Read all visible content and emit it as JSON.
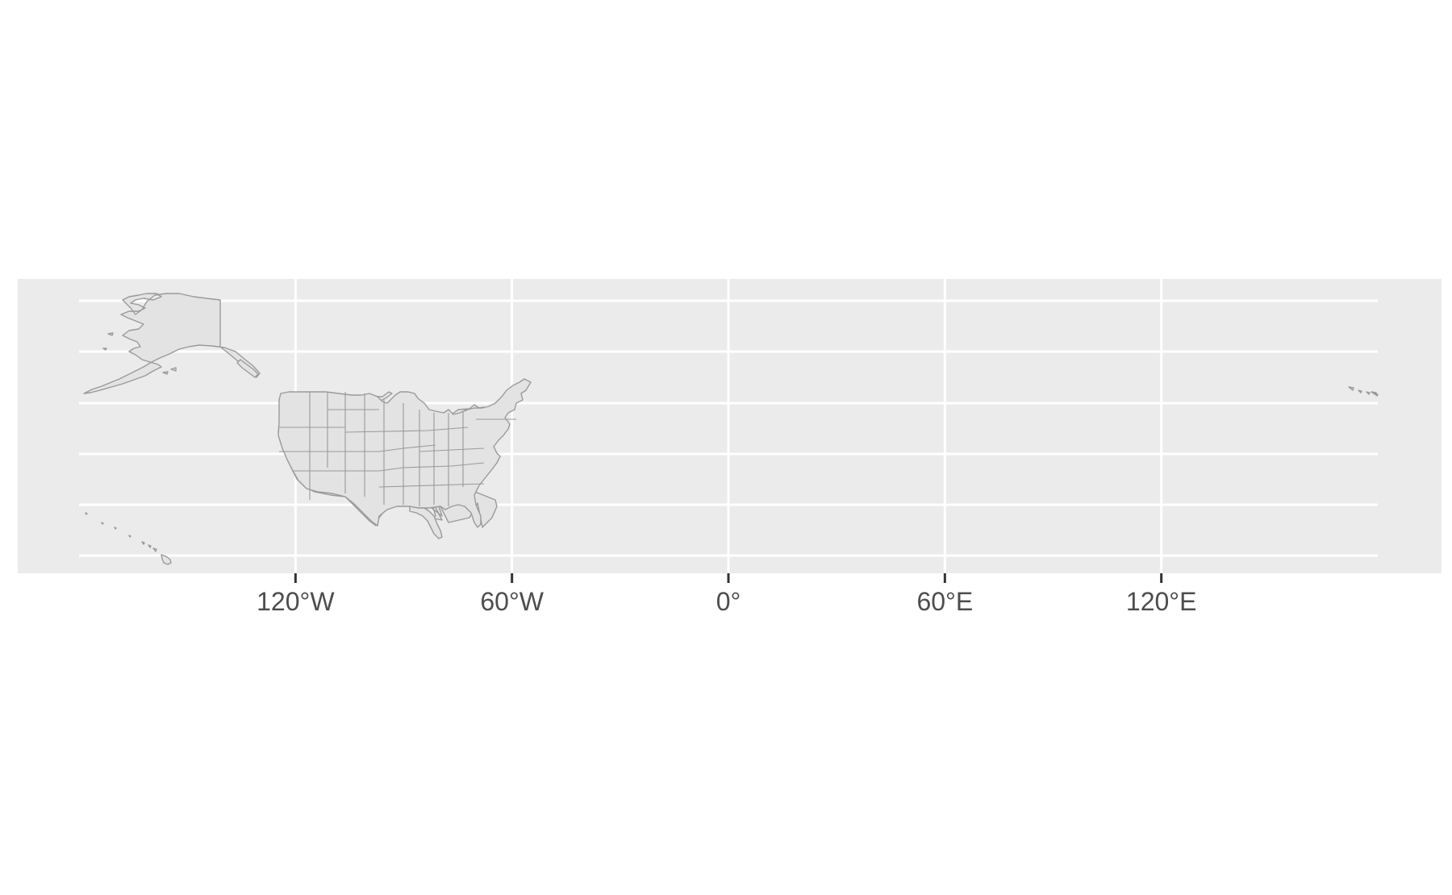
{
  "map": {
    "panel_background": "#ebebeb",
    "grid_color": "#ffffff",
    "land_fill": "#e3e3e3",
    "border_color": "#9a9a9a",
    "tick_color": "#333333",
    "label_color": "#4d4d4d",
    "x_axis": {
      "range_deg": [
        -180,
        180
      ],
      "ticks": [
        {
          "value": -120,
          "label": "120°W"
        },
        {
          "value": -60,
          "label": "60°W"
        },
        {
          "value": 0,
          "label": "0°"
        },
        {
          "value": 60,
          "label": "60°E"
        },
        {
          "value": 120,
          "label": "120°E"
        }
      ]
    },
    "graticule_latitudes": [
      15,
      30,
      45,
      60,
      75
    ],
    "regions": [
      "alaska",
      "contiguous-united-states",
      "hawaii",
      "aleutian-islands-east"
    ]
  }
}
